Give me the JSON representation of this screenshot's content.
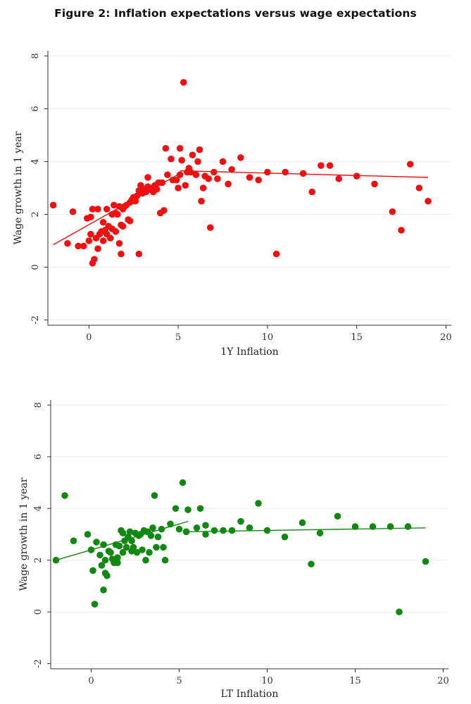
{
  "figure_title": "Figure 2: Inflation expectations versus wage expectations",
  "colors": {
    "series1": "#ee1111",
    "series2": "#118811",
    "grid": "#e9eef2",
    "axis": "#333333"
  },
  "chart_data": [
    {
      "type": "scatter",
      "xlabel": "1Y Inflation",
      "ylabel": "Wage growth in 1 year",
      "xlim": [
        -2.3,
        20.3
      ],
      "ylim": [
        -2.2,
        8.2
      ],
      "xticks": [
        0,
        5,
        10,
        15,
        20
      ],
      "yticks": [
        -2,
        0,
        2,
        4,
        6,
        8
      ],
      "grid": "horizontal",
      "points": [
        [
          -2.0,
          2.35
        ],
        [
          -1.2,
          0.9
        ],
        [
          -0.9,
          2.1
        ],
        [
          -0.6,
          0.8
        ],
        [
          -0.3,
          0.8
        ],
        [
          -0.1,
          1.85
        ],
        [
          0.0,
          1.0
        ],
        [
          0.1,
          1.9
        ],
        [
          0.1,
          1.25
        ],
        [
          0.2,
          2.2
        ],
        [
          0.2,
          0.15
        ],
        [
          0.3,
          0.3
        ],
        [
          0.4,
          1.1
        ],
        [
          0.5,
          2.2
        ],
        [
          0.5,
          0.7
        ],
        [
          0.6,
          1.25
        ],
        [
          0.7,
          1.35
        ],
        [
          0.8,
          1.7
        ],
        [
          0.8,
          1.0
        ],
        [
          0.9,
          1.4
        ],
        [
          1.0,
          2.2
        ],
        [
          1.0,
          1.25
        ],
        [
          1.1,
          1.55
        ],
        [
          1.2,
          1.1
        ],
        [
          1.3,
          1.45
        ],
        [
          1.3,
          2.0
        ],
        [
          1.4,
          2.35
        ],
        [
          1.5,
          1.35
        ],
        [
          1.5,
          2.05
        ],
        [
          1.6,
          2.0
        ],
        [
          1.7,
          0.9
        ],
        [
          1.7,
          2.3
        ],
        [
          1.8,
          0.5
        ],
        [
          1.8,
          1.6
        ],
        [
          1.9,
          1.55
        ],
        [
          1.9,
          2.2
        ],
        [
          2.0,
          2.3
        ],
        [
          2.1,
          2.35
        ],
        [
          2.2,
          1.8
        ],
        [
          2.3,
          2.45
        ],
        [
          2.3,
          1.75
        ],
        [
          2.4,
          2.55
        ],
        [
          2.5,
          2.65
        ],
        [
          2.6,
          2.5
        ],
        [
          2.7,
          2.7
        ],
        [
          2.8,
          0.5
        ],
        [
          2.8,
          2.9
        ],
        [
          2.9,
          3.1
        ],
        [
          3.0,
          2.8
        ],
        [
          3.1,
          2.95
        ],
        [
          3.2,
          2.85
        ],
        [
          3.3,
          3.05
        ],
        [
          3.3,
          3.4
        ],
        [
          3.4,
          2.95
        ],
        [
          3.5,
          3.0
        ],
        [
          3.6,
          2.85
        ],
        [
          3.7,
          3.1
        ],
        [
          3.8,
          2.95
        ],
        [
          3.9,
          3.2
        ],
        [
          4.0,
          2.05
        ],
        [
          4.1,
          3.2
        ],
        [
          4.2,
          2.15
        ],
        [
          4.3,
          4.5
        ],
        [
          4.4,
          3.5
        ],
        [
          4.6,
          4.1
        ],
        [
          4.7,
          3.3
        ],
        [
          4.9,
          3.3
        ],
        [
          5.0,
          3.0
        ],
        [
          5.1,
          3.5
        ],
        [
          5.1,
          4.5
        ],
        [
          5.2,
          4.05
        ],
        [
          5.3,
          7.0
        ],
        [
          5.4,
          3.1
        ],
        [
          5.5,
          3.6
        ],
        [
          5.6,
          3.75
        ],
        [
          5.7,
          3.6
        ],
        [
          5.8,
          4.25
        ],
        [
          6.0,
          3.5
        ],
        [
          6.1,
          4.0
        ],
        [
          6.2,
          4.45
        ],
        [
          6.3,
          2.5
        ],
        [
          6.4,
          3.0
        ],
        [
          6.5,
          3.45
        ],
        [
          6.7,
          3.35
        ],
        [
          6.8,
          1.5
        ],
        [
          7.0,
          3.6
        ],
        [
          7.2,
          3.35
        ],
        [
          7.5,
          4.0
        ],
        [
          7.8,
          3.15
        ],
        [
          8.0,
          3.7
        ],
        [
          8.5,
          4.15
        ],
        [
          9.0,
          3.4
        ],
        [
          9.5,
          3.3
        ],
        [
          10.0,
          3.6
        ],
        [
          10.5,
          0.5
        ],
        [
          11.0,
          3.6
        ],
        [
          12.0,
          3.55
        ],
        [
          12.5,
          2.85
        ],
        [
          13.0,
          3.85
        ],
        [
          13.5,
          3.85
        ],
        [
          14.0,
          3.35
        ],
        [
          15.0,
          3.45
        ],
        [
          16.0,
          3.15
        ],
        [
          17.0,
          2.1
        ],
        [
          17.5,
          1.4
        ],
        [
          18.0,
          3.9
        ],
        [
          18.5,
          3.0
        ],
        [
          19.0,
          2.5
        ]
      ],
      "fit_lines": [
        {
          "x": [
            -2.0,
            5.1
          ],
          "y": [
            0.85,
            3.55
          ]
        },
        {
          "x": [
            5.1,
            19.0
          ],
          "y": [
            3.65,
            3.4
          ]
        }
      ]
    },
    {
      "type": "scatter",
      "xlabel": "LT Inflation",
      "ylabel": "Wage growth in 1 year",
      "xlim": [
        -2.3,
        20.3
      ],
      "ylim": [
        -2.2,
        8.2
      ],
      "xticks": [
        0,
        5,
        10,
        15,
        20
      ],
      "yticks": [
        -2,
        0,
        2,
        4,
        6,
        8
      ],
      "grid": "horizontal",
      "points": [
        [
          -2.0,
          2.0
        ],
        [
          -1.5,
          4.5
        ],
        [
          -1.0,
          2.75
        ],
        [
          -0.2,
          3.0
        ],
        [
          0.0,
          2.4
        ],
        [
          0.1,
          1.6
        ],
        [
          0.2,
          0.3
        ],
        [
          0.3,
          2.7
        ],
        [
          0.5,
          2.2
        ],
        [
          0.6,
          1.8
        ],
        [
          0.7,
          0.85
        ],
        [
          0.7,
          2.6
        ],
        [
          0.8,
          1.5
        ],
        [
          0.8,
          2.0
        ],
        [
          0.9,
          1.4
        ],
        [
          1.0,
          2.35
        ],
        [
          1.1,
          2.3
        ],
        [
          1.2,
          2.05
        ],
        [
          1.3,
          1.9
        ],
        [
          1.4,
          2.6
        ],
        [
          1.5,
          1.9
        ],
        [
          1.5,
          2.1
        ],
        [
          1.6,
          2.55
        ],
        [
          1.7,
          3.15
        ],
        [
          1.8,
          2.3
        ],
        [
          1.8,
          3.05
        ],
        [
          1.9,
          2.75
        ],
        [
          2.0,
          2.5
        ],
        [
          2.1,
          2.9
        ],
        [
          2.2,
          3.1
        ],
        [
          2.3,
          2.75
        ],
        [
          2.3,
          2.35
        ],
        [
          2.4,
          2.5
        ],
        [
          2.5,
          3.05
        ],
        [
          2.6,
          2.3
        ],
        [
          2.7,
          2.95
        ],
        [
          2.8,
          3.0
        ],
        [
          2.9,
          2.4
        ],
        [
          3.0,
          3.15
        ],
        [
          3.1,
          2.0
        ],
        [
          3.2,
          3.1
        ],
        [
          3.3,
          2.3
        ],
        [
          3.4,
          2.95
        ],
        [
          3.5,
          3.25
        ],
        [
          3.6,
          4.5
        ],
        [
          3.7,
          2.5
        ],
        [
          3.8,
          2.9
        ],
        [
          4.0,
          3.2
        ],
        [
          4.1,
          2.5
        ],
        [
          4.2,
          2.0
        ],
        [
          4.5,
          3.4
        ],
        [
          4.8,
          4.0
        ],
        [
          5.0,
          3.2
        ],
        [
          5.2,
          5.0
        ],
        [
          5.4,
          3.1
        ],
        [
          5.5,
          3.95
        ],
        [
          6.0,
          3.25
        ],
        [
          6.2,
          4.0
        ],
        [
          6.5,
          3.0
        ],
        [
          6.5,
          3.35
        ],
        [
          7.0,
          3.15
        ],
        [
          7.5,
          3.15
        ],
        [
          8.0,
          3.15
        ],
        [
          8.5,
          3.5
        ],
        [
          9.0,
          3.25
        ],
        [
          9.5,
          4.2
        ],
        [
          10.0,
          3.15
        ],
        [
          11.0,
          2.9
        ],
        [
          12.0,
          3.45
        ],
        [
          12.5,
          1.85
        ],
        [
          13.0,
          3.05
        ],
        [
          14.0,
          3.7
        ],
        [
          15.0,
          3.3
        ],
        [
          16.0,
          3.3
        ],
        [
          17.0,
          3.3
        ],
        [
          17.5,
          0.0
        ],
        [
          18.0,
          3.3
        ],
        [
          19.0,
          1.95
        ]
      ],
      "fit_lines": [
        {
          "x": [
            -2.0,
            5.5
          ],
          "y": [
            2.0,
            3.5
          ]
        },
        {
          "x": [
            5.5,
            19.0
          ],
          "y": [
            3.1,
            3.25
          ]
        }
      ]
    }
  ]
}
